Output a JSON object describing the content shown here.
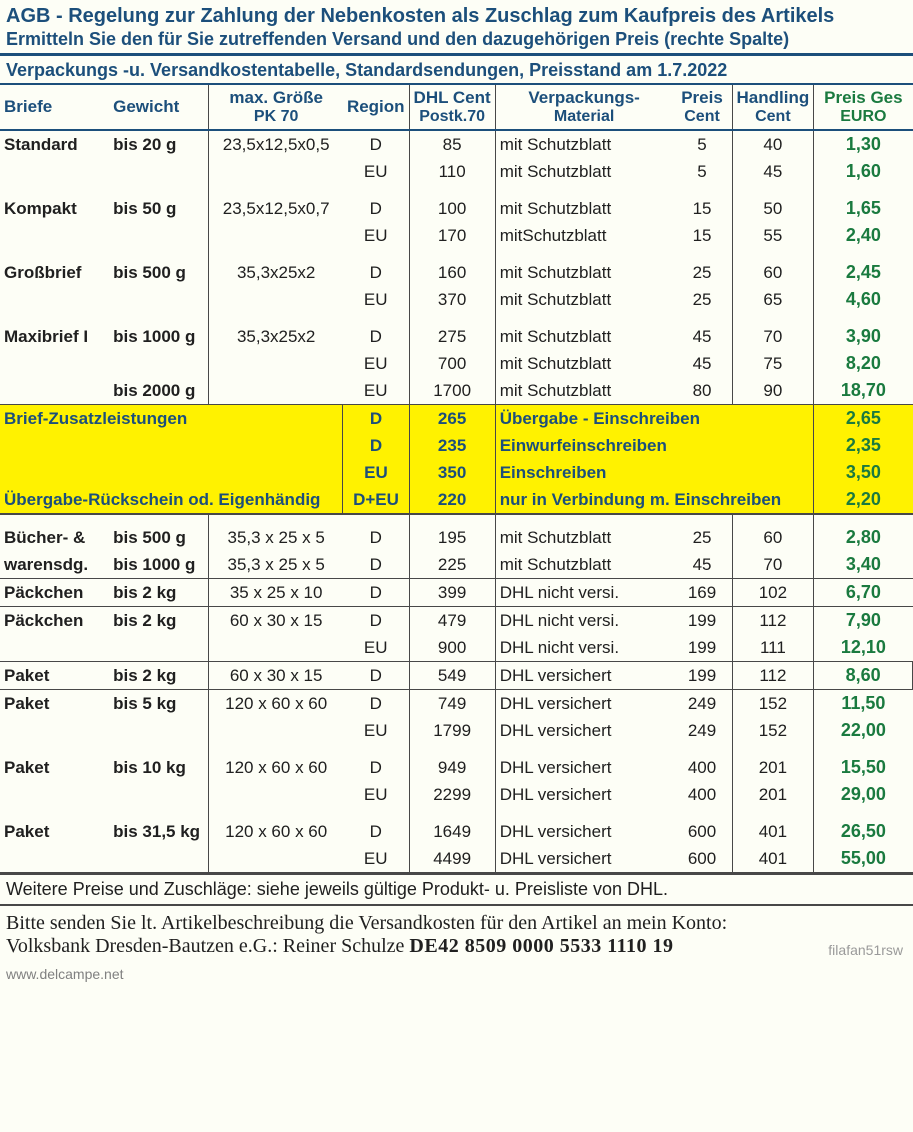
{
  "title1": "AGB - Regelung zur Zahlung der Nebenkosten als Zuschlag zum Kaufpreis des Artikels",
  "title2": "Ermitteln Sie den für Sie zutreffenden Versand und den dazugehörigen Preis (rechte Spalte)",
  "subtitle": "Verpackungs -u. Versandkostentabelle, Standardsendungen,   Preisstand am 1.7.2022",
  "headers": {
    "briefe": "Briefe",
    "gewicht": "Gewicht",
    "groesse": "max. Größe",
    "groesse_sub": "PK 70",
    "region": "Region",
    "dhl": "DHL Cent",
    "dhl_sub": "Postk.70",
    "mat": "Verpackungs-",
    "mat_sub": "Material",
    "preisc": "Preis",
    "preisc_sub": "Cent",
    "handl": "Handling",
    "handl_sub": "Cent",
    "ges": "Preis Ges",
    "ges_sub": "EURO"
  },
  "rows": [
    {
      "briefe": "Standard",
      "gewicht": "bis 20 g",
      "groesse": "23,5x12,5x0,5",
      "region": "D",
      "dhl": "85",
      "mat": "mit Schutzblatt",
      "preisc": "5",
      "handl": "40",
      "ges": "1,30"
    },
    {
      "briefe": "",
      "gewicht": "",
      "groesse": "",
      "region": "EU",
      "dhl": "110",
      "mat": "mit Schutzblatt",
      "preisc": "5",
      "handl": "45",
      "ges": "1,60"
    },
    {
      "spacer": true
    },
    {
      "briefe": "Kompakt",
      "gewicht": "bis 50 g",
      "groesse": "23,5x12,5x0,7",
      "region": "D",
      "dhl": "100",
      "mat": "mit Schutzblatt",
      "preisc": "15",
      "handl": "50",
      "ges": "1,65"
    },
    {
      "briefe": "",
      "gewicht": "",
      "groesse": "",
      "region": "EU",
      "dhl": "170",
      "mat": "mitSchutzblatt",
      "preisc": "15",
      "handl": "55",
      "ges": "2,40"
    },
    {
      "spacer": true
    },
    {
      "briefe": "Großbrief",
      "gewicht": "bis 500 g",
      "groesse": "35,3x25x2",
      "region": "D",
      "dhl": "160",
      "mat": "mit Schutzblatt",
      "preisc": "25",
      "handl": "60",
      "ges": "2,45"
    },
    {
      "briefe": "",
      "gewicht": "",
      "groesse": "",
      "region": "EU",
      "dhl": "370",
      "mat": "mit Schutzblatt",
      "preisc": "25",
      "handl": "65",
      "ges": "4,60"
    },
    {
      "spacer": true
    },
    {
      "briefe": "Maxibrief I",
      "gewicht": "bis 1000 g",
      "groesse": "35,3x25x2",
      "region": "D",
      "dhl": "275",
      "mat": "mit Schutzblatt",
      "preisc": "45",
      "handl": "70",
      "ges": "3,90"
    },
    {
      "briefe": "",
      "gewicht": "",
      "groesse": "",
      "region": "EU",
      "dhl": "700",
      "mat": "mit Schutzblatt",
      "preisc": "45",
      "handl": "75",
      "ges": "8,20"
    },
    {
      "briefe": "",
      "gewicht": "bis 2000 g",
      "groesse": "",
      "region": "EU",
      "dhl": "1700",
      "mat": "mit Schutzblatt",
      "preisc": "80",
      "handl": "90",
      "ges": "18,70",
      "sep": true
    }
  ],
  "highlight_rows": [
    {
      "label": "Brief-Zusatzleistungen",
      "region": "D",
      "dhl": "265",
      "mat": "Übergabe - Einschreiben",
      "ges": "2,65"
    },
    {
      "label": "",
      "region": "D",
      "dhl": "235",
      "mat": "Einwurfeinschreiben",
      "ges": "2,35"
    },
    {
      "label": "",
      "region": "EU",
      "dhl": "350",
      "mat": "   Einschreiben",
      "ges": "3,50"
    },
    {
      "label": "Übergabe-Rückschein od. Eigenhändig",
      "region": "D+EU",
      "dhl": "220",
      "mat": "nur in Verbindung m. Einschreiben",
      "ges": "2,20",
      "sep": true
    }
  ],
  "rows2": [
    {
      "spacer": true
    },
    {
      "briefe": "Bücher- &",
      "gewicht": "bis 500 g",
      "groesse": "35,3 x 25 x 5",
      "region": "D",
      "dhl": "195",
      "mat": "mit Schutzblatt",
      "preisc": "25",
      "handl": "60",
      "ges": "2,80"
    },
    {
      "briefe": "warensdg.",
      "gewicht": "bis 1000 g",
      "groesse": "35,3 x 25 x 5",
      "region": "D",
      "dhl": "225",
      "mat": "mit Schutzblatt",
      "preisc": "45",
      "handl": "70",
      "ges": "3,40",
      "sep": true
    },
    {
      "briefe": "Päckchen",
      "gewicht": "bis 2 kg",
      "groesse": "35 x 25 x 10",
      "region": "D",
      "dhl": "399",
      "mat": "DHL nicht versi.",
      "preisc": "169",
      "handl": "102",
      "ges": "6,70",
      "sep": true
    },
    {
      "briefe": "Päckchen",
      "gewicht": "bis 2 kg",
      "groesse": "60 x 30 x 15",
      "region": "D",
      "dhl": "479",
      "mat": "DHL nicht versi.",
      "preisc": "199",
      "handl": "112",
      "ges": "7,90"
    },
    {
      "briefe": "",
      "gewicht": "",
      "groesse": "",
      "region": "EU",
      "dhl": "900",
      "mat": "DHL nicht versi.",
      "preisc": "199",
      "handl": "111",
      "ges": "12,10",
      "sep": true
    },
    {
      "briefe": "Paket",
      "gewicht": "bis 2 kg",
      "groesse": "60 x 30 x 15",
      "region": "D",
      "dhl": "549",
      "mat": "DHL versichert",
      "preisc": "199",
      "handl": "112",
      "ges": "8,60",
      "sep": true,
      "gesbox": true
    },
    {
      "briefe": "Paket",
      "gewicht": "bis 5 kg",
      "groesse": "120 x 60 x 60",
      "region": "D",
      "dhl": "749",
      "mat": "DHL versichert",
      "preisc": "249",
      "handl": "152",
      "ges": "11,50"
    },
    {
      "briefe": "",
      "gewicht": "",
      "groesse": "",
      "region": "EU",
      "dhl": "1799",
      "mat": "DHL versichert",
      "preisc": "249",
      "handl": "152",
      "ges": "22,00"
    },
    {
      "spacer": true
    },
    {
      "briefe": "Paket",
      "gewicht": "bis 10 kg",
      "groesse": "120 x 60 x 60",
      "region": "D",
      "dhl": "949",
      "mat": "DHL versichert",
      "preisc": "400",
      "handl": "201",
      "ges": "15,50"
    },
    {
      "briefe": "",
      "gewicht": "",
      "groesse": "",
      "region": "EU",
      "dhl": "2299",
      "mat": "DHL versichert",
      "preisc": "400",
      "handl": "201",
      "ges": "29,00"
    },
    {
      "spacer": true
    },
    {
      "briefe": "Paket",
      "gewicht": "bis 31,5 kg",
      "groesse": "120 x 60 x 60",
      "region": "D",
      "dhl": "1649",
      "mat": "DHL versichert",
      "preisc": "600",
      "handl": "401",
      "ges": "26,50"
    },
    {
      "briefe": "",
      "gewicht": "",
      "groesse": "",
      "region": "EU",
      "dhl": "4499",
      "mat": "DHL versichert",
      "preisc": "600",
      "handl": "401",
      "ges": "55,00",
      "sep": true
    }
  ],
  "footnote": "Weitere Preise und Zuschläge: siehe jeweils gültige Produkt- u. Preisliste von DHL.",
  "bank1": "Bitte senden Sie lt. Artikelbeschreibung die Versandkosten für den Artikel an mein Konto:",
  "bank2a": "Volksbank Dresden-Bautzen e.G.: Reiner Schulze   ",
  "bank2b": "DE42 8509 0000 5533 1110 19",
  "watermark": "filafan51rsw",
  "delcampe": "www.delcampe.net"
}
